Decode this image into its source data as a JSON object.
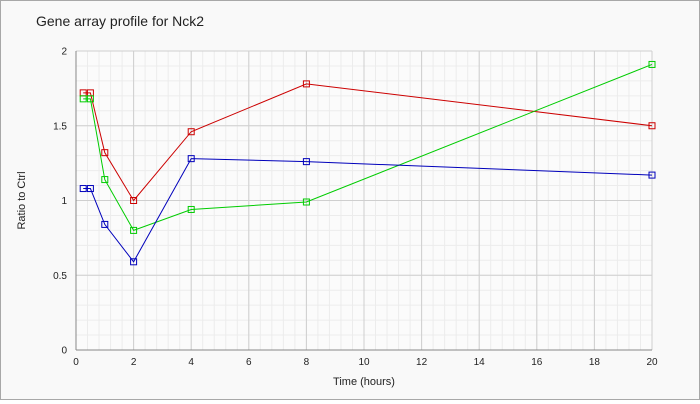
{
  "chart_data": {
    "type": "line",
    "title": "Gene array profile for Nck2",
    "xlabel": "Time (hours)",
    "ylabel": "Ratio to Ctrl",
    "xlim": [
      0,
      20
    ],
    "ylim": [
      0,
      2
    ],
    "xticks": [
      0,
      2,
      4,
      6,
      8,
      10,
      12,
      14,
      16,
      18,
      20
    ],
    "yticks": [
      0,
      0.5,
      1,
      1.5,
      2
    ],
    "grid": true,
    "legend": "none",
    "series": [
      {
        "color": "#cc0000",
        "marker": "open-square",
        "points": [
          {
            "x": 0.25,
            "y": 1.72
          },
          {
            "x": 0.5,
            "y": 1.72
          },
          {
            "x": 1,
            "y": 1.32
          },
          {
            "x": 2,
            "y": 1.0
          },
          {
            "x": 4,
            "y": 1.46
          },
          {
            "x": 8,
            "y": 1.78
          },
          {
            "x": 20,
            "y": 1.5
          }
        ]
      },
      {
        "color": "#00cc00",
        "marker": "open-square",
        "points": [
          {
            "x": 0.25,
            "y": 1.68
          },
          {
            "x": 0.5,
            "y": 1.68
          },
          {
            "x": 1,
            "y": 1.14
          },
          {
            "x": 2,
            "y": 0.8
          },
          {
            "x": 4,
            "y": 0.94
          },
          {
            "x": 8,
            "y": 0.99
          },
          {
            "x": 20,
            "y": 1.91
          }
        ]
      },
      {
        "color": "#0000bb",
        "marker": "open-square",
        "points": [
          {
            "x": 0.25,
            "y": 1.08
          },
          {
            "x": 0.5,
            "y": 1.08
          },
          {
            "x": 1,
            "y": 0.84
          },
          {
            "x": 2,
            "y": 0.59
          },
          {
            "x": 4,
            "y": 1.28
          },
          {
            "x": 8,
            "y": 1.26
          },
          {
            "x": 20,
            "y": 1.17
          }
        ]
      }
    ]
  }
}
